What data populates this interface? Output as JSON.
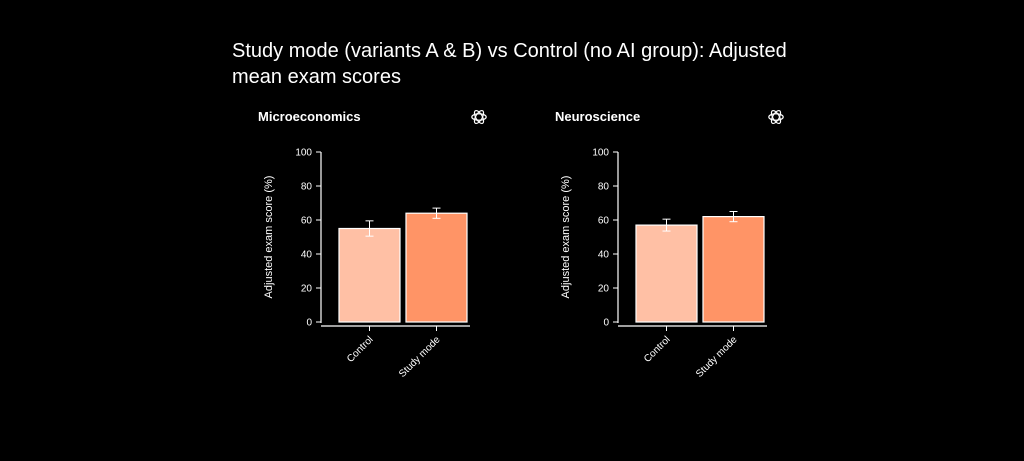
{
  "title": "Study mode (variants A & B) vs Control (no AI group): Adjusted mean exam scores",
  "colors": {
    "background": "#000000",
    "text": "#ffffff",
    "control": "#ffc0a5",
    "study_mode": "#ff9466",
    "bar_stroke": "#ffffff",
    "error_bar": "#ffffff"
  },
  "chart_data": [
    {
      "type": "bar",
      "title": "Microeconomics",
      "icon": "openai-logo-icon",
      "categories": [
        "Control",
        "Study mode"
      ],
      "values": [
        55,
        64
      ],
      "errors": [
        4.5,
        3
      ],
      "ylabel": "Adjusted exam score (%)",
      "ylim": [
        0,
        100
      ],
      "yticks": [
        0,
        20,
        40,
        60,
        80,
        100
      ],
      "grid": false,
      "legend": "none"
    },
    {
      "type": "bar",
      "title": "Neuroscience",
      "icon": "openai-logo-icon",
      "categories": [
        "Control",
        "Study mode"
      ],
      "values": [
        57,
        62
      ],
      "errors": [
        3.5,
        3
      ],
      "ylabel": "Adjusted exam score (%)",
      "ylim": [
        0,
        100
      ],
      "yticks": [
        0,
        20,
        40,
        60,
        80,
        100
      ],
      "grid": false,
      "legend": "none"
    }
  ]
}
